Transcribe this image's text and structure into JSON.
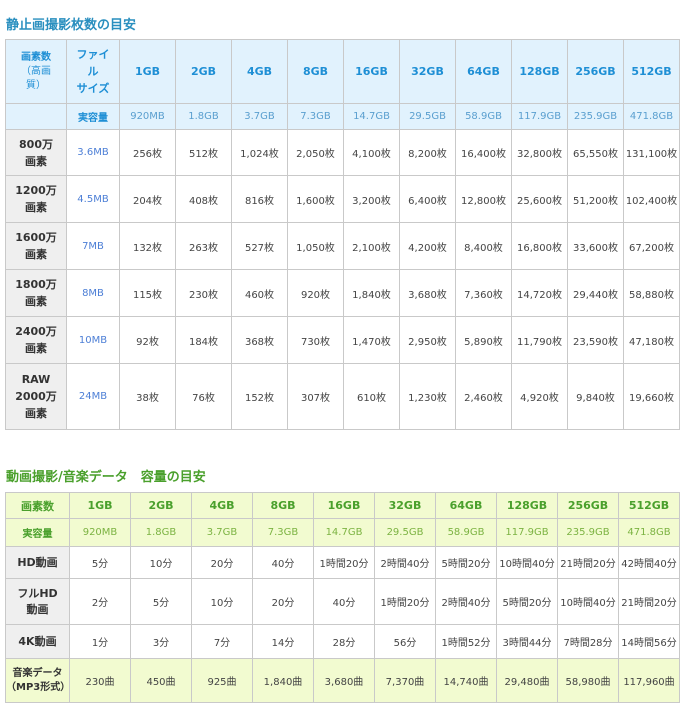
{
  "still": {
    "title": "静止画撮影枚数の目安",
    "pixels_head": [
      "画素数",
      "（高画",
      "質）"
    ],
    "filesize_head": [
      "ファイ",
      "ル",
      "サイズ"
    ],
    "capacities": [
      "1GB",
      "2GB",
      "4GB",
      "8GB",
      "16GB",
      "32GB",
      "64GB",
      "128GB",
      "256GB",
      "512GB"
    ],
    "actual_label": "実容量",
    "actual": [
      "920MB",
      "1.8GB",
      "3.7GB",
      "7.3GB",
      "14.7GB",
      "29.5GB",
      "58.9GB",
      "117.9GB",
      "235.9GB",
      "471.8GB"
    ],
    "rows": [
      {
        "head": [
          "800万",
          "画素"
        ],
        "size": "3.6MB",
        "values": [
          "256枚",
          "512枚",
          "1,024枚",
          "2,050枚",
          "4,100枚",
          "8,200枚",
          "16,400枚",
          "32,800枚",
          "65,550枚",
          "131,100枚"
        ]
      },
      {
        "head": [
          "1200万",
          "画素"
        ],
        "size": "4.5MB",
        "values": [
          "204枚",
          "408枚",
          "816枚",
          "1,600枚",
          "3,200枚",
          "6,400枚",
          "12,800枚",
          "25,600枚",
          "51,200枚",
          "102,400枚"
        ]
      },
      {
        "head": [
          "1600万",
          "画素"
        ],
        "size": "7MB",
        "values": [
          "132枚",
          "263枚",
          "527枚",
          "1,050枚",
          "2,100枚",
          "4,200枚",
          "8,400枚",
          "16,800枚",
          "33,600枚",
          "67,200枚"
        ]
      },
      {
        "head": [
          "1800万",
          "画素"
        ],
        "size": "8MB",
        "values": [
          "115枚",
          "230枚",
          "460枚",
          "920枚",
          "1,840枚",
          "3,680枚",
          "7,360枚",
          "14,720枚",
          "29,440枚",
          "58,880枚"
        ]
      },
      {
        "head": [
          "2400万",
          "画素"
        ],
        "size": "10MB",
        "values": [
          "92枚",
          "184枚",
          "368枚",
          "730枚",
          "1,470枚",
          "2,950枚",
          "5,890枚",
          "11,790枚",
          "23,590枚",
          "47,180枚"
        ]
      },
      {
        "head": [
          "RAW",
          "2000万",
          "画素"
        ],
        "size": "24MB",
        "values": [
          "38枚",
          "76枚",
          "152枚",
          "307枚",
          "610枚",
          "1,230枚",
          "2,460枚",
          "4,920枚",
          "9,840枚",
          "19,660枚"
        ]
      }
    ]
  },
  "video": {
    "title": "動画撮影/音楽データ　容量の目安",
    "pixels_head": "画素数",
    "capacities": [
      "1GB",
      "2GB",
      "4GB",
      "8GB",
      "16GB",
      "32GB",
      "64GB",
      "128GB",
      "256GB",
      "512GB"
    ],
    "actual_label": "実容量",
    "actual": [
      "920MB",
      "1.8GB",
      "3.7GB",
      "7.3GB",
      "14.7GB",
      "29.5GB",
      "58.9GB",
      "117.9GB",
      "235.9GB",
      "471.8GB"
    ],
    "rows": [
      {
        "head": [
          "HD動画"
        ],
        "values": [
          "5分",
          "10分",
          "20分",
          "40分",
          "1時間20分",
          "2時間40分",
          "5時間20分",
          "10時間40分",
          "21時間20分",
          "42時間40分"
        ]
      },
      {
        "head": [
          "フルHD",
          "動画"
        ],
        "values": [
          "2分",
          "5分",
          "10分",
          "20分",
          "40分",
          "1時間20分",
          "2時間40分",
          "5時間20分",
          "10時間40分",
          "21時間20分"
        ]
      },
      {
        "head": [
          "4K動画"
        ],
        "values": [
          "1分",
          "3分",
          "7分",
          "14分",
          "28分",
          "56分",
          "1時間52分",
          "3時間44分",
          "7時間28分",
          "14時間56分"
        ]
      },
      {
        "head": [
          "音楽データ",
          "（MP3形式）"
        ],
        "values": [
          "230曲",
          "450曲",
          "925曲",
          "1,840曲",
          "3,680曲",
          "7,370曲",
          "14,740曲",
          "29,480曲",
          "58,980曲",
          "117,960曲"
        ]
      }
    ]
  }
}
